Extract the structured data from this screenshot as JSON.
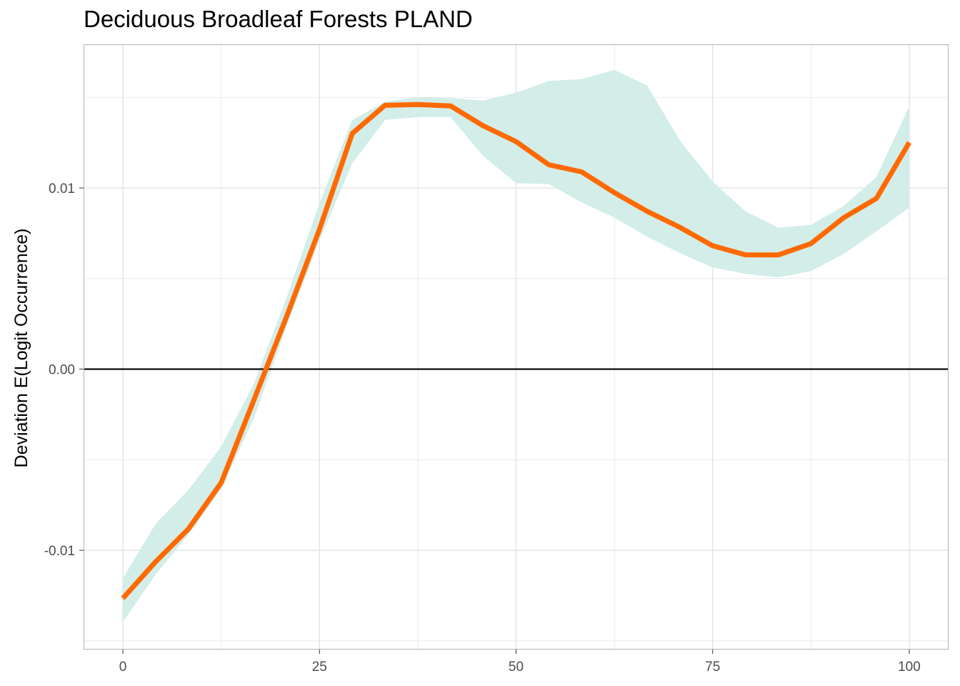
{
  "chart_data": {
    "type": "line",
    "title": "Deciduous Broadleaf Forests PLAND",
    "xlabel": "",
    "ylabel": "Deviation E(Logit Occurrence)",
    "xlim": [
      -5,
      105
    ],
    "ylim": [
      -0.01548,
      0.01793
    ],
    "x_ticks": [
      0,
      25,
      50,
      75,
      100
    ],
    "x_tick_labels": [
      "0",
      "25",
      "50",
      "75",
      "100"
    ],
    "y_ticks": [
      -0.01,
      0.0,
      0.01
    ],
    "y_tick_labels": [
      "-0.01",
      "0.00",
      "0.01"
    ],
    "grid": true,
    "reference_line_y": 0,
    "colors": {
      "line": "#ff6a00",
      "band": "#d3ede9",
      "grid": "#e5e5e5",
      "panel_border": "#b3b3b3",
      "reference_line": "#000000"
    },
    "series": [
      {
        "x": [
          0,
          4.17,
          8.33,
          12.5,
          16.67,
          20.83,
          25,
          29.17,
          33.33,
          37.5,
          41.67,
          45.83,
          50,
          54.17,
          58.33,
          62.5,
          66.67,
          70.83,
          75,
          79.17,
          83.33,
          87.5,
          91.67,
          95.83,
          100
        ],
        "values": [
          -0.01265,
          -0.01063,
          -0.00882,
          -0.00627,
          -0.00169,
          0.00292,
          0.00772,
          0.01301,
          0.01456,
          0.01461,
          0.01453,
          0.01343,
          0.01256,
          0.01128,
          0.01089,
          0.00974,
          0.00871,
          0.00783,
          0.00681,
          0.00631,
          0.0063,
          0.00693,
          0.00836,
          0.00942,
          0.01251
        ],
        "band_upper": [
          -0.01155,
          -0.00853,
          -0.00667,
          -0.00427,
          -0.00079,
          0.00397,
          0.00917,
          0.01376,
          0.01476,
          0.01501,
          0.01496,
          0.01483,
          0.01526,
          0.01591,
          0.01601,
          0.01651,
          0.01566,
          0.01262,
          0.01036,
          0.00871,
          0.00781,
          0.00796,
          0.00901,
          0.01061,
          0.01451
        ],
        "band_lower": [
          -0.01395,
          -0.01133,
          -0.00912,
          -0.00662,
          -0.00269,
          0.00237,
          0.00712,
          0.01136,
          0.01376,
          0.01391,
          0.01391,
          0.01176,
          0.01026,
          0.01021,
          0.00921,
          0.00836,
          0.00731,
          0.00641,
          0.00561,
          0.00526,
          0.00506,
          0.00541,
          0.00636,
          0.00761,
          0.00891
        ]
      }
    ]
  }
}
